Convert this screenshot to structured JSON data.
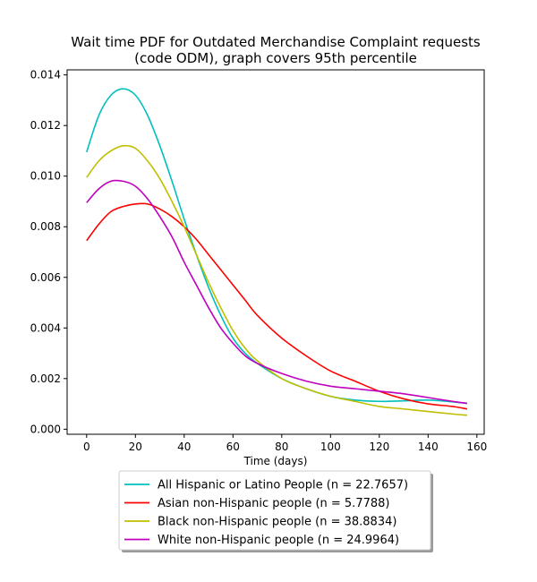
{
  "chart_data": {
    "type": "line",
    "title_line1": "Wait time PDF for Outdated Merchandise Complaint  requests",
    "title_line2": "(code ODM), graph covers 95th percentile",
    "xlabel": "Time (days)",
    "ylabel": "",
    "xlim": [
      -8,
      163
    ],
    "ylim": [
      -0.0002,
      0.0142
    ],
    "xticks": [
      0,
      20,
      40,
      60,
      80,
      100,
      120,
      140,
      160
    ],
    "yticks": [
      0.0,
      0.002,
      0.004,
      0.006,
      0.008,
      0.01,
      0.012,
      0.014
    ],
    "ytick_labels": [
      "0.000",
      "0.002",
      "0.004",
      "0.006",
      "0.008",
      "0.010",
      "0.012",
      "0.014"
    ],
    "grid": false,
    "legend_position": "below-center",
    "x": [
      0,
      5,
      10,
      15,
      20,
      25,
      30,
      35,
      40,
      45,
      50,
      55,
      60,
      65,
      70,
      80,
      90,
      100,
      110,
      120,
      130,
      140,
      150,
      156
    ],
    "series": [
      {
        "name": "All Hispanic or Latino People (n = 22.7657)",
        "color": "#00bfbf",
        "values": [
          0.01095,
          0.0124,
          0.0132,
          0.01345,
          0.0132,
          0.0124,
          0.0112,
          0.0098,
          0.0083,
          0.0069,
          0.0056,
          0.0045,
          0.0036,
          0.003,
          0.0026,
          0.002,
          0.0016,
          0.0013,
          0.00115,
          0.0011,
          0.00112,
          0.00115,
          0.00108,
          0.00102
        ]
      },
      {
        "name": "Asian non-Hispanic people (n = 5.7788)",
        "color": "#ff0000",
        "values": [
          0.00745,
          0.0081,
          0.0086,
          0.0088,
          0.0089,
          0.0089,
          0.0087,
          0.0084,
          0.008,
          0.0075,
          0.0069,
          0.0063,
          0.0057,
          0.0051,
          0.0045,
          0.0036,
          0.0029,
          0.0023,
          0.0019,
          0.0015,
          0.0012,
          0.001,
          0.0009,
          0.0008
        ]
      },
      {
        "name": "Black non-Hispanic people (n = 38.8834)",
        "color": "#bfbf00",
        "values": [
          0.00995,
          0.0106,
          0.011,
          0.0112,
          0.0111,
          0.0106,
          0.0099,
          0.009,
          0.008,
          0.0069,
          0.0058,
          0.0048,
          0.0039,
          0.0032,
          0.0027,
          0.002,
          0.0016,
          0.0013,
          0.0011,
          0.0009,
          0.0008,
          0.0007,
          0.0006,
          0.00055
        ]
      },
      {
        "name": "White non-Hispanic people (n = 24.9964)",
        "color": "#bf00bf",
        "values": [
          0.00895,
          0.0095,
          0.0098,
          0.0098,
          0.0096,
          0.0091,
          0.0084,
          0.0076,
          0.0066,
          0.0057,
          0.0048,
          0.004,
          0.0034,
          0.0029,
          0.0026,
          0.0022,
          0.0019,
          0.0017,
          0.0016,
          0.0015,
          0.0014,
          0.00125,
          0.0011,
          0.00102
        ]
      }
    ]
  }
}
